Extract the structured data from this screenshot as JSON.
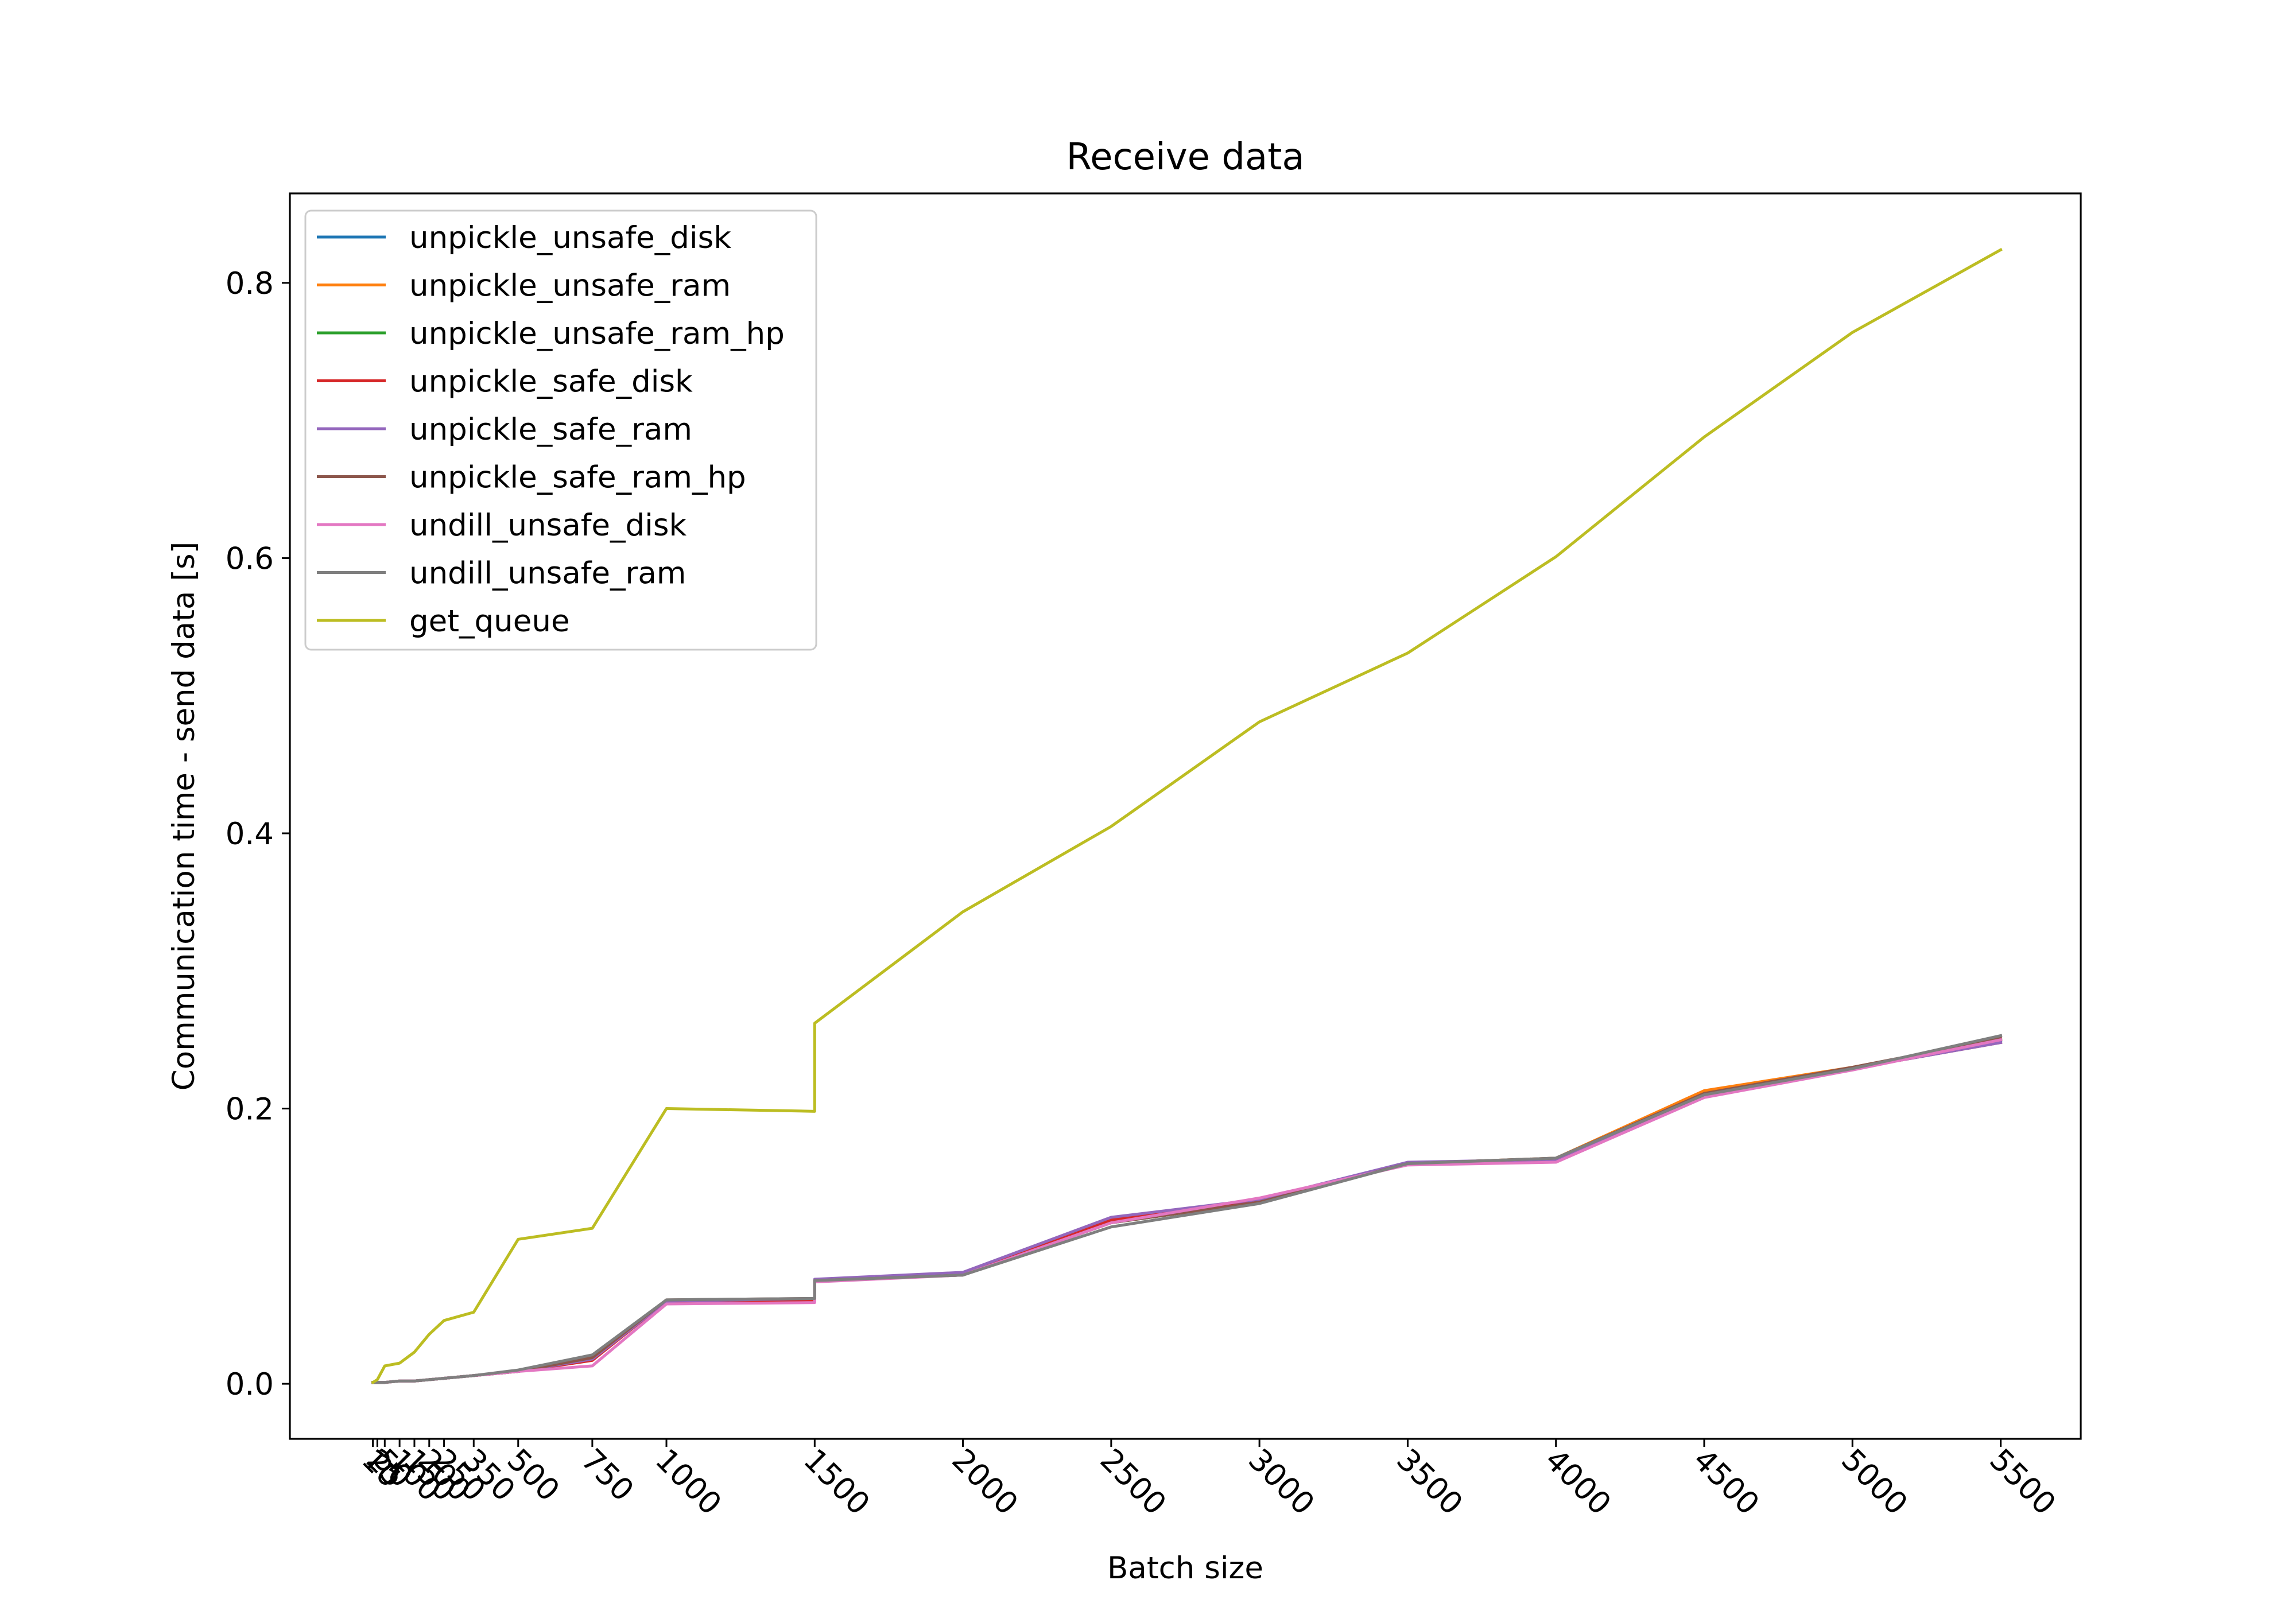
{
  "chart_data": {
    "type": "line",
    "title": "Receive data",
    "xlabel": "Batch size",
    "ylabel": "Communication time - send data [s]",
    "xlim": [
      -270,
      5770
    ],
    "ylim": [
      -0.04,
      0.865
    ],
    "x_ticks": [
      10,
      25,
      50,
      100,
      150,
      200,
      250,
      350,
      500,
      750,
      1000,
      1500,
      2000,
      2500,
      3000,
      3500,
      4000,
      4500,
      5000,
      5500
    ],
    "x_tick_labels": [
      "10",
      "25",
      "50",
      "100",
      "150",
      "200",
      "250",
      "350",
      "500",
      "750",
      "1000",
      "1500",
      "2000",
      "2500",
      "3000",
      "3500",
      "4000",
      "4500",
      "5000",
      "5500"
    ],
    "y_ticks": [
      0.0,
      0.2,
      0.4,
      0.6,
      0.8
    ],
    "y_tick_labels": [
      "0.0",
      "0.2",
      "0.4",
      "0.6",
      "0.8"
    ],
    "grid": false,
    "legend_position": "top-left",
    "series": [
      {
        "name": "unpickle_unsafe_disk",
        "color": "#1f77b4",
        "x": [
          10,
          25,
          50,
          100,
          150,
          200,
          250,
          350,
          500,
          750,
          1000,
          1500,
          1500,
          2000,
          2500,
          3000,
          3500,
          4000,
          4500,
          5000,
          5500
        ],
        "y": [
          0.001,
          0.001,
          0.001,
          0.002,
          0.002,
          0.003,
          0.004,
          0.006,
          0.009,
          0.019,
          0.06,
          0.061,
          0.075,
          0.079,
          0.118,
          0.133,
          0.16,
          0.163,
          0.211,
          0.229,
          0.249
        ]
      },
      {
        "name": "unpickle_unsafe_ram",
        "color": "#ff7f0e",
        "x": [
          10,
          25,
          50,
          100,
          150,
          200,
          250,
          350,
          500,
          750,
          1000,
          1500,
          1500,
          2000,
          2500,
          3000,
          3500,
          4000,
          4500,
          5000,
          5500
        ],
        "y": [
          0.001,
          0.001,
          0.001,
          0.002,
          0.002,
          0.003,
          0.004,
          0.006,
          0.009,
          0.018,
          0.06,
          0.062,
          0.075,
          0.079,
          0.118,
          0.133,
          0.16,
          0.164,
          0.213,
          0.23,
          0.25
        ]
      },
      {
        "name": "unpickle_unsafe_ram_hp",
        "color": "#2ca02c",
        "x": [
          10,
          25,
          50,
          100,
          150,
          200,
          250,
          350,
          500,
          750,
          1000,
          1500,
          1500,
          2000,
          2500,
          3000,
          3500,
          4000,
          4500,
          5000,
          5500
        ],
        "y": [
          0.001,
          0.001,
          0.001,
          0.002,
          0.002,
          0.003,
          0.004,
          0.006,
          0.009,
          0.019,
          0.06,
          0.061,
          0.075,
          0.079,
          0.117,
          0.132,
          0.16,
          0.163,
          0.21,
          0.229,
          0.25
        ]
      },
      {
        "name": "unpickle_safe_disk",
        "color": "#d62728",
        "x": [
          10,
          25,
          50,
          100,
          150,
          200,
          250,
          350,
          500,
          750,
          1000,
          1500,
          1500,
          2000,
          2500,
          3000,
          3500,
          4000,
          4500,
          5000,
          5500
        ],
        "y": [
          0.001,
          0.001,
          0.001,
          0.002,
          0.002,
          0.003,
          0.004,
          0.006,
          0.009,
          0.017,
          0.06,
          0.061,
          0.075,
          0.08,
          0.119,
          0.133,
          0.16,
          0.163,
          0.21,
          0.229,
          0.248
        ]
      },
      {
        "name": "unpickle_safe_ram",
        "color": "#9467bd",
        "x": [
          10,
          25,
          50,
          100,
          150,
          200,
          250,
          350,
          500,
          750,
          1000,
          1500,
          1500,
          2000,
          2500,
          3000,
          3500,
          4000,
          4500,
          5000,
          5500
        ],
        "y": [
          0.001,
          0.001,
          0.001,
          0.002,
          0.002,
          0.003,
          0.004,
          0.006,
          0.009,
          0.018,
          0.06,
          0.062,
          0.076,
          0.081,
          0.121,
          0.134,
          0.161,
          0.163,
          0.209,
          0.229,
          0.248
        ]
      },
      {
        "name": "unpickle_safe_ram_hp",
        "color": "#8c564b",
        "x": [
          10,
          25,
          50,
          100,
          150,
          200,
          250,
          350,
          500,
          750,
          1000,
          1500,
          1500,
          2000,
          2500,
          3000,
          3500,
          4000,
          4500,
          5000,
          5500
        ],
        "y": [
          0.001,
          0.001,
          0.001,
          0.002,
          0.002,
          0.003,
          0.004,
          0.006,
          0.009,
          0.019,
          0.061,
          0.062,
          0.075,
          0.079,
          0.117,
          0.132,
          0.16,
          0.164,
          0.211,
          0.23,
          0.251
        ]
      },
      {
        "name": "undill_unsafe_disk",
        "color": "#e377c2",
        "x": [
          10,
          25,
          50,
          100,
          150,
          200,
          250,
          350,
          500,
          750,
          1000,
          1500,
          1500,
          2000,
          2500,
          3000,
          3500,
          4000,
          4500,
          5000,
          5500
        ],
        "y": [
          0.001,
          0.001,
          0.001,
          0.002,
          0.002,
          0.003,
          0.004,
          0.006,
          0.009,
          0.013,
          0.058,
          0.059,
          0.074,
          0.079,
          0.117,
          0.135,
          0.159,
          0.161,
          0.208,
          0.228,
          0.25
        ]
      },
      {
        "name": "undill_unsafe_ram",
        "color": "#7f7f7f",
        "x": [
          10,
          25,
          50,
          100,
          150,
          200,
          250,
          350,
          500,
          750,
          1000,
          1500,
          1500,
          2000,
          2500,
          3000,
          3500,
          4000,
          4500,
          5000,
          5500
        ],
        "y": [
          0.001,
          0.001,
          0.001,
          0.002,
          0.002,
          0.003,
          0.004,
          0.006,
          0.01,
          0.021,
          0.061,
          0.062,
          0.075,
          0.079,
          0.114,
          0.131,
          0.16,
          0.164,
          0.21,
          0.229,
          0.253
        ]
      },
      {
        "name": "get_queue",
        "color": "#bcbd22",
        "x": [
          10,
          25,
          50,
          100,
          150,
          200,
          250,
          350,
          500,
          750,
          1000,
          1500,
          1500,
          2000,
          2500,
          3000,
          3500,
          4000,
          4500,
          5000,
          5500
        ],
        "y": [
          0.001,
          0.003,
          0.013,
          0.015,
          0.023,
          0.036,
          0.046,
          0.052,
          0.105,
          0.113,
          0.2,
          0.198,
          0.262,
          0.343,
          0.405,
          0.481,
          0.531,
          0.601,
          0.688,
          0.764,
          0.824
        ]
      }
    ]
  }
}
